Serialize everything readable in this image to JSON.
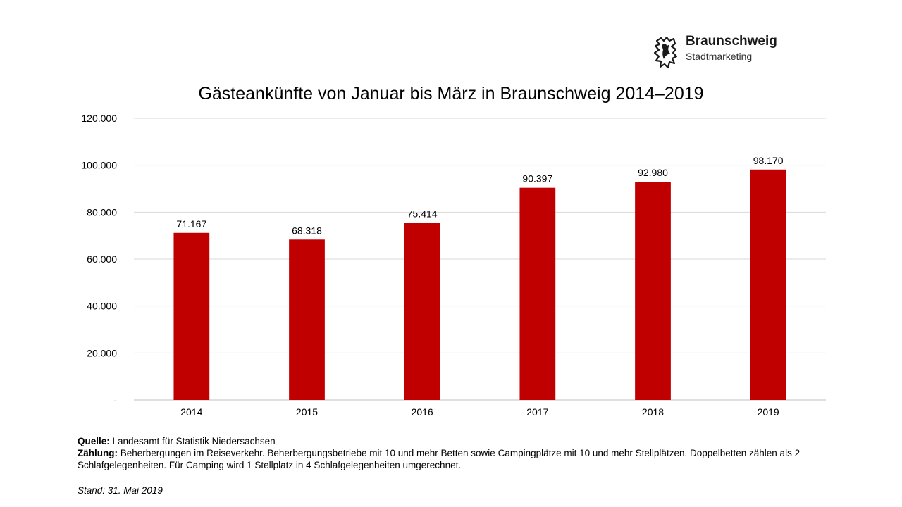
{
  "logo": {
    "name": "Braunschweig",
    "sub": "Stadtmarketing"
  },
  "chart_data": {
    "type": "bar",
    "title": "Gästeankünfte von Januar bis März in Braunschweig 2014–2019",
    "categories": [
      "2014",
      "2015",
      "2016",
      "2017",
      "2018",
      "2019"
    ],
    "values": [
      71167,
      68318,
      75414,
      90397,
      92980,
      98170
    ],
    "value_labels": [
      "71.167",
      "68.318",
      "75.414",
      "90.397",
      "92.980",
      "98.170"
    ],
    "ylim": [
      0,
      120000
    ],
    "yticks": [
      0,
      20000,
      40000,
      60000,
      80000,
      100000,
      120000
    ],
    "ytick_labels": [
      "-",
      "20.000",
      "40.000",
      "60.000",
      "80.000",
      "100.000",
      "120.000"
    ],
    "grid": true,
    "legend": "none",
    "bar_color": "#c00000"
  },
  "notes": {
    "source_label": "Quelle:",
    "source_text": " Landesamt für Statistik Niedersachsen",
    "count_label": "Zählung:",
    "count_text": " Beherbergungen im Reiseverkehr. Beherbergungsbetriebe mit 10 und mehr Betten sowie Campingplätze mit 10 und mehr Stellplätzen. Doppelbetten zählen als 2 Schlafgelegenheiten. Für Camping wird 1 Stellplatz in 4 Schlafgelegenheiten umgerechnet.",
    "stand": "Stand: 31. Mai 2019"
  }
}
